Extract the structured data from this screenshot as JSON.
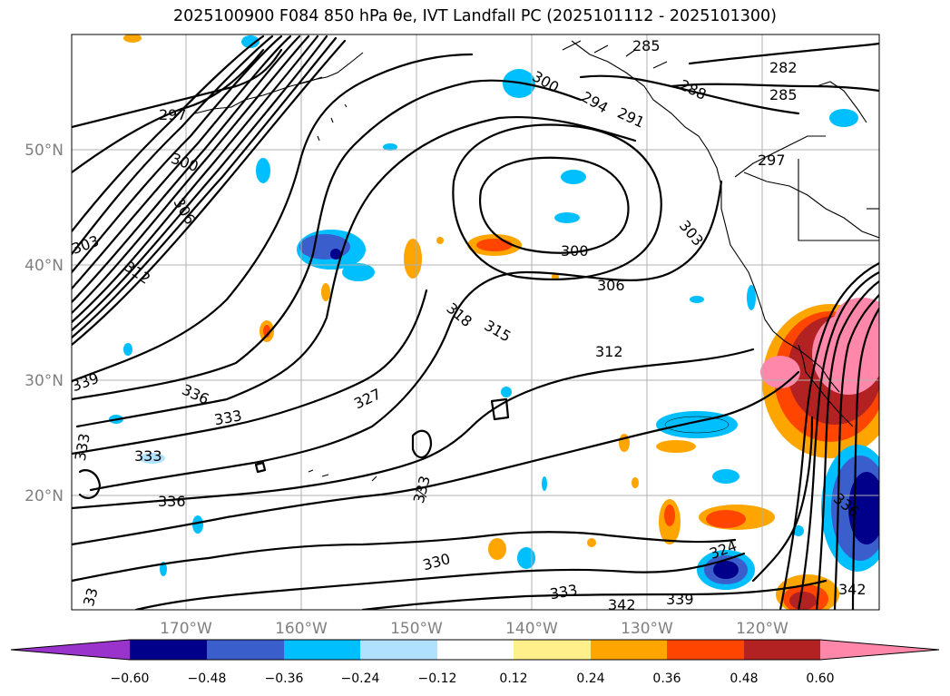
{
  "title": "2025100900 F084 850 hPa θe, IVT Landfall PC (2025101112 - 2025101300)",
  "lat_labels": [
    "50°N",
    "40°N",
    "30°N",
    "20°N"
  ],
  "lon_labels": [
    "170°W",
    "160°W",
    "150°W",
    "140°W",
    "130°W",
    "120°W"
  ],
  "colorbar": {
    "ticks": [
      "−0.60",
      "−0.48",
      "−0.36",
      "−0.24",
      "−0.12",
      "0.12",
      "0.24",
      "0.36",
      "0.48",
      "0.60"
    ],
    "colors": [
      "#9933cc",
      "#00008b",
      "#3a5fcd",
      "#00bfff",
      "#b0e2ff",
      "#ffffff",
      "#fff08c",
      "#ffa500",
      "#ff4500",
      "#b22222",
      "#ff88aa"
    ]
  },
  "contour_labels": [
    "285",
    "282",
    "285",
    "288",
    "300",
    "294",
    "291",
    "297",
    "297",
    "300",
    "306",
    "303",
    "300",
    "303",
    "306",
    "312",
    "318",
    "315",
    "312",
    "339",
    "336",
    "333",
    "327",
    "333",
    "333",
    "336",
    "333",
    "330",
    "333",
    "342",
    "339",
    "324",
    "336",
    "342",
    "33"
  ],
  "colors": {
    "contour": "#000000",
    "grid": "#b0b0b0",
    "axis_label": "#808080"
  }
}
